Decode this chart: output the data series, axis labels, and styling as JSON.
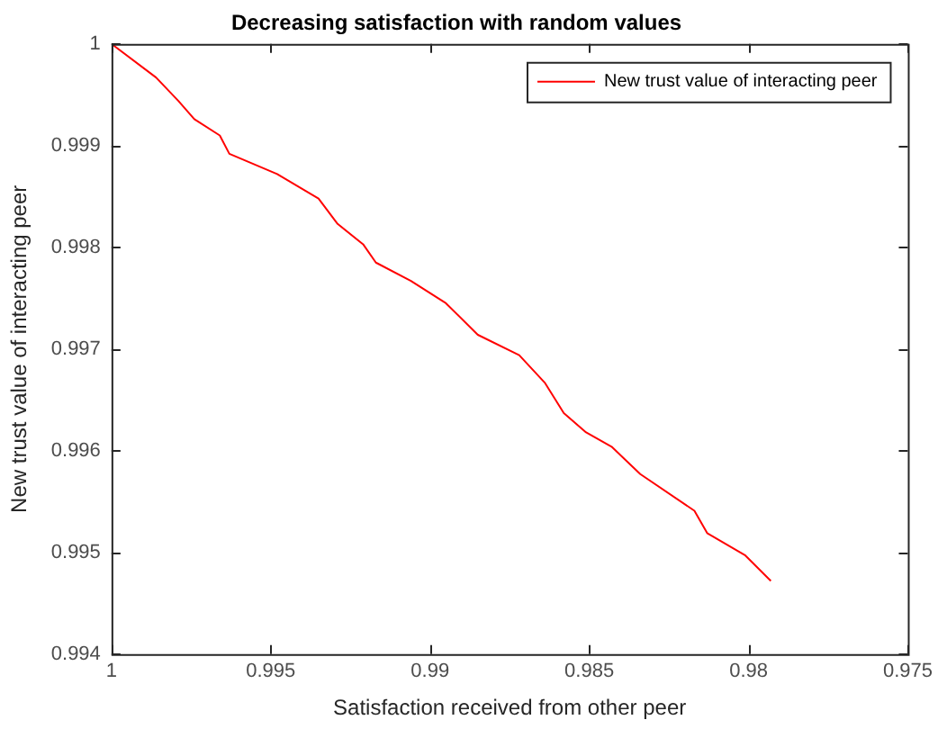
{
  "chart_data": {
    "type": "line",
    "title": "Decreasing satisfaction with random values",
    "xlabel": "Satisfaction received from other peer",
    "ylabel": "New trust value of interacting peer",
    "x": [
      1,
      0.9986,
      0.9979,
      0.9974,
      0.9966,
      0.9963,
      0.9948,
      0.9935,
      0.9929,
      0.9921,
      0.9917,
      0.9906,
      0.9895,
      0.9885,
      0.9872,
      0.9864,
      0.9858,
      0.9851,
      0.9843,
      0.9834,
      0.9817,
      0.9813,
      0.9801,
      0.9793
    ],
    "series": [
      {
        "name": "New trust value of interacting peer",
        "color": "#ff0000",
        "values": [
          1,
          0.99967,
          0.99944,
          0.99926,
          0.9991,
          0.99892,
          0.99872,
          0.99848,
          0.99823,
          0.99803,
          0.99785,
          0.99767,
          0.99745,
          0.99714,
          0.99694,
          0.99667,
          0.99637,
          0.99618,
          0.99604,
          0.99577,
          0.99541,
          0.99519,
          0.99497,
          0.99472
        ]
      }
    ],
    "xlim": [
      1,
      0.975
    ],
    "xticks": [
      1,
      0.995,
      0.99,
      0.985,
      0.98,
      0.975
    ],
    "ylim": [
      0.994,
      1
    ],
    "yticks": [
      0.994,
      0.995,
      0.996,
      0.997,
      0.998,
      0.999,
      1
    ],
    "grid": false,
    "legend": "top right",
    "marker": "none",
    "line_style": "solid"
  }
}
